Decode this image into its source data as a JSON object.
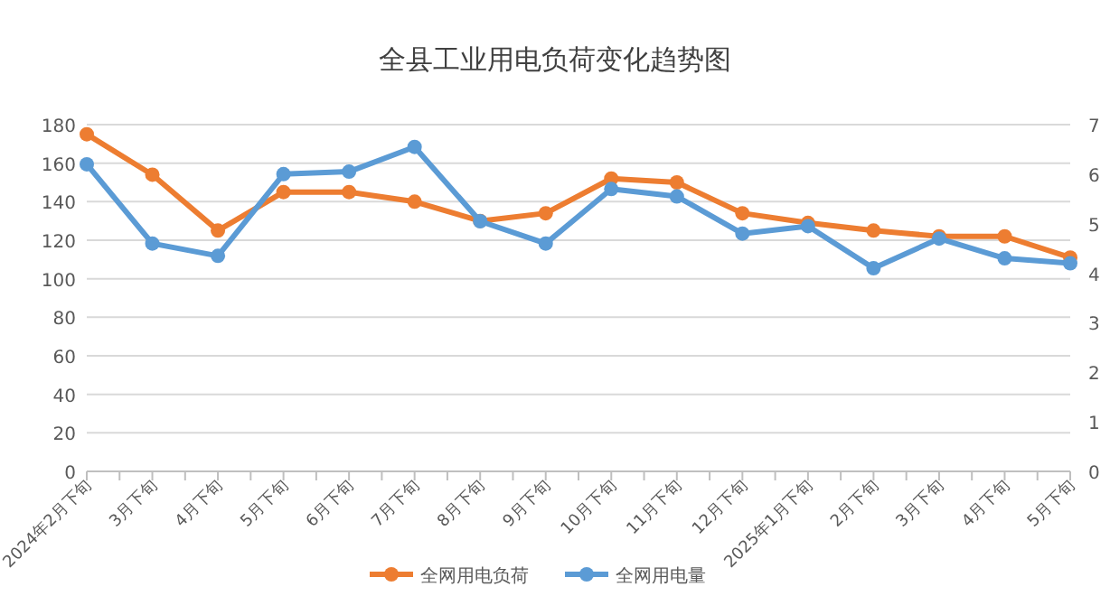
{
  "chart_data": {
    "type": "line",
    "title": "全县工业用电负荷变化趋势图",
    "categories": [
      "2024年2月下旬",
      "3月下旬",
      "4月下旬",
      "5月下旬",
      "6月下旬",
      "7月下旬",
      "8月下旬",
      "9月下旬",
      "10月下旬",
      "11月下旬",
      "12月下旬",
      "2025年1月下旬",
      "2月下旬",
      "3月下旬",
      "4月下旬",
      "5月下旬"
    ],
    "series": [
      {
        "name": "全网用电负荷",
        "color": "#ed7d31",
        "values": [
          175,
          154,
          125,
          145,
          145,
          140,
          130,
          134,
          152,
          150,
          134,
          129,
          125,
          122,
          122,
          111
        ]
      },
      {
        "name": "全网用电量",
        "color": "#5b9bd5",
        "axis": "y2",
        "values": [
          6.2,
          4.6,
          4.35,
          6.0,
          6.05,
          6.55,
          5.05,
          4.6,
          5.7,
          5.55,
          4.8,
          4.95,
          4.1,
          4.7,
          4.3,
          4.2
        ]
      }
    ],
    "ylim": [
      0,
      180
    ],
    "yticks": [
      0,
      20,
      40,
      60,
      80,
      100,
      120,
      140,
      160,
      180
    ],
    "y2lim": [
      0,
      7
    ],
    "y2ticks": [
      0,
      1,
      2,
      3,
      4,
      5,
      6,
      7
    ],
    "grid": "y",
    "legend": "bottom",
    "marker": "circle",
    "line_style": "solid"
  }
}
